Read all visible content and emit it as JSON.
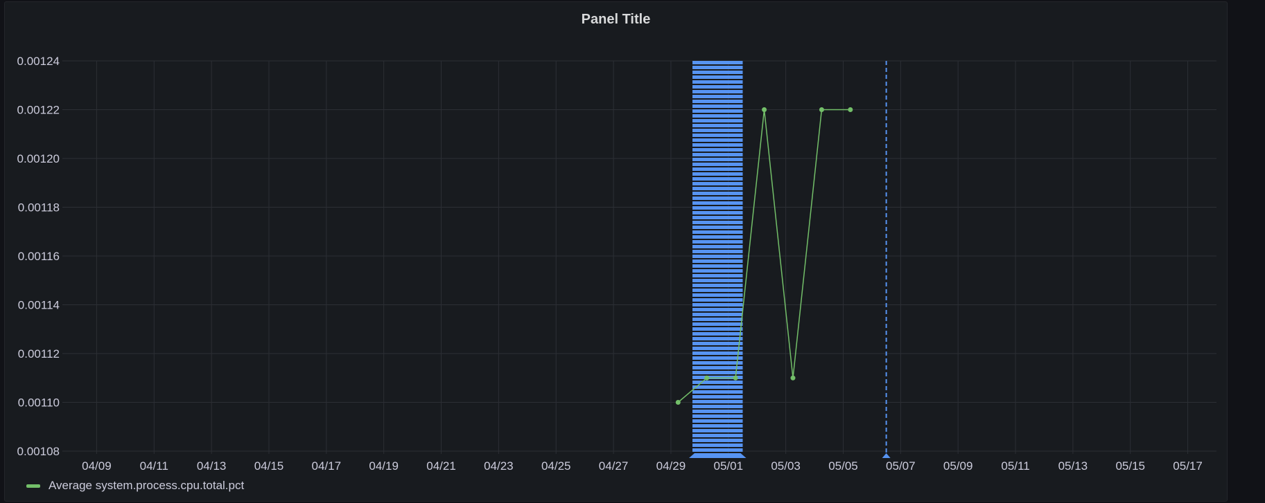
{
  "panel": {
    "title": "Panel Title"
  },
  "colors": {
    "background": "#181b1f",
    "grid": "#2c2f35",
    "tick_text": "#ccccdc",
    "series": "#73bf69",
    "annotation": "#5794f2"
  },
  "chart_data": {
    "type": "line",
    "title": "Panel Title",
    "xlabel": "",
    "ylabel": "",
    "x_axis_type": "date",
    "xlim": [
      "2024-04-08",
      "2024-05-18"
    ],
    "ylim": [
      0.00108,
      0.00124
    ],
    "x_ticks": [
      "04/09",
      "04/11",
      "04/13",
      "04/15",
      "04/17",
      "04/19",
      "04/21",
      "04/23",
      "04/25",
      "04/27",
      "04/29",
      "05/01",
      "05/03",
      "05/05",
      "05/07",
      "05/09",
      "05/11",
      "05/13",
      "05/15",
      "05/17"
    ],
    "x_tick_dates": [
      "2024-04-09",
      "2024-04-11",
      "2024-04-13",
      "2024-04-15",
      "2024-04-17",
      "2024-04-19",
      "2024-04-21",
      "2024-04-23",
      "2024-04-25",
      "2024-04-27",
      "2024-04-29",
      "2024-05-01",
      "2024-05-03",
      "2024-05-05",
      "2024-05-07",
      "2024-05-09",
      "2024-05-11",
      "2024-05-13",
      "2024-05-15",
      "2024-05-17"
    ],
    "y_ticks": [
      "0.00108",
      "0.00110",
      "0.00112",
      "0.00114",
      "0.00116",
      "0.00118",
      "0.00120",
      "0.00122",
      "0.00124"
    ],
    "y_tick_values": [
      0.00108,
      0.0011,
      0.00112,
      0.00114,
      0.00116,
      0.00118,
      0.0012,
      0.00122,
      0.00124
    ],
    "grid": true,
    "legend_position": "bottom-left",
    "series": [
      {
        "name": "Average system.process.cpu.total.pct",
        "color": "#73bf69",
        "points": [
          {
            "x": "2024-04-29T06:00",
            "y": 0.0011
          },
          {
            "x": "2024-04-30T06:00",
            "y": 0.00111
          },
          {
            "x": "2024-05-01T06:00",
            "y": 0.00111
          },
          {
            "x": "2024-05-02T06:00",
            "y": 0.00122
          },
          {
            "x": "2024-05-03T06:00",
            "y": 0.00111
          },
          {
            "x": "2024-05-04T06:00",
            "y": 0.00122
          },
          {
            "x": "2024-05-05T06:00",
            "y": 0.00122
          }
        ]
      }
    ],
    "annotations": [
      {
        "type": "region",
        "start": "2024-04-29T18:00",
        "end": "2024-05-01T12:00",
        "color": "#5794f2"
      },
      {
        "type": "line",
        "x": "2024-05-06T12:00",
        "color": "#5794f2"
      }
    ]
  }
}
